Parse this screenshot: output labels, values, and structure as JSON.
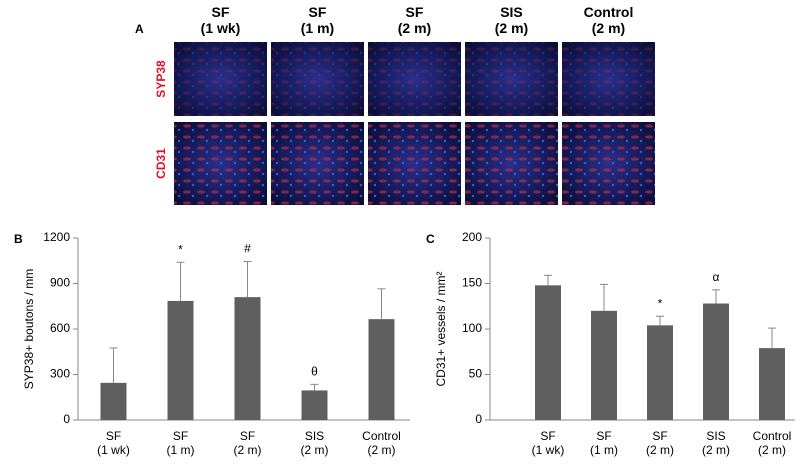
{
  "panel_a": {
    "letter": "A",
    "columns": [
      "SF\n(1 wk)",
      "SF\n(1 m)",
      "SF\n(2 m)",
      "SIS\n(2 m)",
      "Control\n(2 m)"
    ],
    "rows": [
      "SYP38",
      "CD31"
    ]
  },
  "chart_data": [
    {
      "type": "bar",
      "panel_label": "B",
      "y_label": "SYP38+ boutons / mm",
      "categories": [
        "SF\n(1 wk)",
        "SF\n(1 m)",
        "SF\n(2 m)",
        "SIS\n(2 m)",
        "Control\n(2 m)"
      ],
      "values": [
        245,
        785,
        810,
        195,
        665
      ],
      "errors": [
        230,
        255,
        235,
        40,
        200
      ],
      "annotations": [
        null,
        "*",
        "#",
        "θ",
        null
      ],
      "color": "#5f5f5f",
      "ylim": [
        0,
        1200
      ],
      "yticks": [
        0,
        300,
        600,
        900,
        1200
      ]
    },
    {
      "type": "bar",
      "panel_label": "C",
      "y_label": "CD31+ vessels / mm²",
      "categories": [
        "SF\n(1 wk)",
        "SF\n(1 m)",
        "SF\n(2 m)",
        "SIS\n(2 m)",
        "Control\n(2 m)"
      ],
      "values": [
        148,
        120,
        104,
        128,
        79
      ],
      "errors": [
        11,
        29,
        10,
        15,
        22
      ],
      "annotations": [
        null,
        null,
        "*",
        "α",
        null
      ],
      "color": "#5f5f5f",
      "ylim": [
        0,
        200
      ],
      "yticks": [
        0,
        50,
        100,
        150,
        200
      ]
    }
  ]
}
